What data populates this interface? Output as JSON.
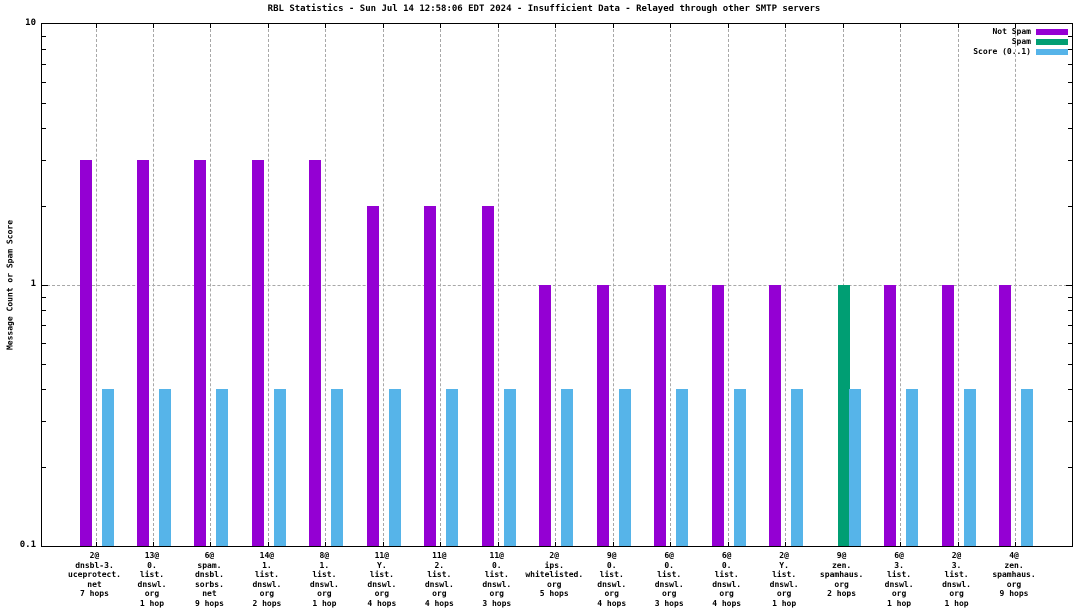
{
  "chart_data": {
    "type": "bar",
    "title": "RBL Statistics - Sun Jul 14 12:58:06 EDT 2024 - Insufficient Data - Relayed through other SMTP servers",
    "ylabel": "Message Count or Spam Score",
    "xlabel": "",
    "y_scale": "log",
    "ylim": [
      0.1,
      10
    ],
    "ytick_labels": [
      "0.1",
      "1",
      "10"
    ],
    "grid": {
      "vertical_dashed_per_category": true,
      "horizontal_dashed_at_y": 1,
      "legend_position": "top-right-inside"
    },
    "colors": {
      "not_spam": "#9400D3",
      "spam": "#009E73",
      "score": "#56B4E9",
      "grid": "#a8a8a8"
    },
    "categories": [
      [
        "2@",
        "dnsbl-3.",
        "uceprotect.",
        "net",
        "7 hops"
      ],
      [
        "13@",
        "0.",
        "list.",
        "dnswl.",
        "org",
        "1 hop"
      ],
      [
        "6@",
        "spam.",
        "dnsbl.",
        "sorbs.",
        "net",
        "9 hops"
      ],
      [
        "14@",
        "1.",
        "list.",
        "dnswl.",
        "org",
        "2 hops"
      ],
      [
        "8@",
        "1.",
        "list.",
        "dnswl.",
        "org",
        "1 hop"
      ],
      [
        "11@",
        "Y.",
        "list.",
        "dnswl.",
        "org",
        "4 hops"
      ],
      [
        "11@",
        "2.",
        "list.",
        "dnswl.",
        "org",
        "4 hops"
      ],
      [
        "11@",
        "0.",
        "list.",
        "dnswl.",
        "org",
        "3 hops"
      ],
      [
        "2@",
        "ips.",
        "whitelisted.",
        "org",
        "5 hops"
      ],
      [
        "9@",
        "0.",
        "list.",
        "dnswl.",
        "org",
        "4 hops"
      ],
      [
        "6@",
        "0.",
        "list.",
        "dnswl.",
        "org",
        "3 hops"
      ],
      [
        "6@",
        "0.",
        "list.",
        "dnswl.",
        "org",
        "4 hops"
      ],
      [
        "2@",
        "Y.",
        "list.",
        "dnswl.",
        "org",
        "1 hop"
      ],
      [
        "9@",
        "zen.",
        "spamhaus.",
        "org",
        "2 hops"
      ],
      [
        "6@",
        "3.",
        "list.",
        "dnswl.",
        "org",
        "1 hop"
      ],
      [
        "2@",
        "3.",
        "list.",
        "dnswl.",
        "org",
        "1 hop"
      ],
      [
        "4@",
        "zen.",
        "spamhaus.",
        "org",
        "9 hops"
      ]
    ],
    "series": [
      {
        "name": "Not Spam",
        "color": "#9400D3",
        "values": [
          3,
          3,
          3,
          3,
          3,
          2,
          2,
          2,
          1,
          1,
          1,
          1,
          1,
          0,
          1,
          1,
          1
        ]
      },
      {
        "name": "Spam",
        "color": "#009E73",
        "values": [
          0,
          0,
          0,
          0,
          0,
          0,
          0,
          0,
          0,
          0,
          0,
          0,
          0,
          1,
          0,
          0,
          0
        ]
      },
      {
        "name": "Score (0..1)",
        "color": "#56B4E9",
        "values": [
          0.4,
          0.4,
          0.4,
          0.4,
          0.4,
          0.4,
          0.4,
          0.4,
          0.4,
          0.4,
          0.4,
          0.4,
          0.4,
          0.4,
          0.4,
          0.4,
          0.4
        ]
      }
    ]
  }
}
